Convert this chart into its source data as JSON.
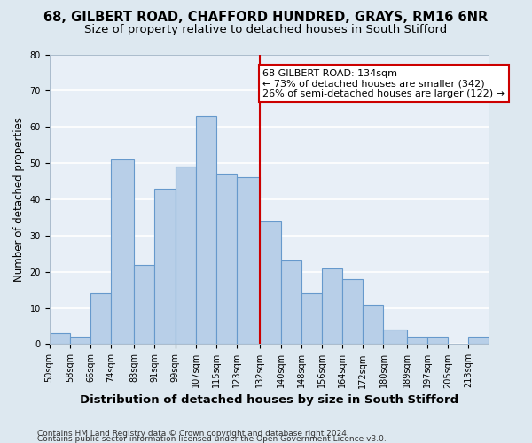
{
  "title_line1": "68, GILBERT ROAD, CHAFFORD HUNDRED, GRAYS, RM16 6NR",
  "title_line2": "Size of property relative to detached houses in South Stifford",
  "xlabel": "Distribution of detached houses by size in South Stifford",
  "ylabel": "Number of detached properties",
  "footer_line1": "Contains HM Land Registry data © Crown copyright and database right 2024.",
  "footer_line2": "Contains public sector information licensed under the Open Government Licence v3.0.",
  "bin_edges": [
    50,
    58,
    66,
    74,
    83,
    91,
    99,
    107,
    115,
    123,
    132,
    140,
    148,
    156,
    164,
    172,
    180,
    189,
    197,
    205,
    213,
    221
  ],
  "tick_labels": [
    "50sqm",
    "58sqm",
    "66sqm",
    "74sqm",
    "83sqm",
    "91sqm",
    "99sqm",
    "107sqm",
    "115sqm",
    "123sqm",
    "132sqm",
    "140sqm",
    "148sqm",
    "156sqm",
    "164sqm",
    "172sqm",
    "180sqm",
    "189sqm",
    "197sqm",
    "205sqm",
    "213sqm"
  ],
  "counts": [
    3,
    2,
    14,
    51,
    22,
    43,
    49,
    63,
    47,
    46,
    34,
    23,
    14,
    21,
    18,
    11,
    4,
    2,
    2,
    0,
    2
  ],
  "bar_color": "#b8cfe8",
  "bar_edge_color": "#6699cc",
  "vline_x": 132,
  "vline_color": "#cc0000",
  "annotation_text": "68 GILBERT ROAD: 134sqm\n← 73% of detached houses are smaller (342)\n26% of semi-detached houses are larger (122) →",
  "annotation_box_facecolor": "#ffffff",
  "annotation_box_edgecolor": "#cc0000",
  "ylim": [
    0,
    80
  ],
  "yticks": [
    0,
    10,
    20,
    30,
    40,
    50,
    60,
    70,
    80
  ],
  "bg_color": "#dde8f0",
  "plot_bg_color": "#e8eff7",
  "grid_color": "#ffffff",
  "title_fontsize": 10.5,
  "subtitle_fontsize": 9.5,
  "ylabel_fontsize": 8.5,
  "xlabel_fontsize": 9.5,
  "tick_fontsize": 7,
  "annotation_fontsize": 8,
  "footer_fontsize": 6.5
}
